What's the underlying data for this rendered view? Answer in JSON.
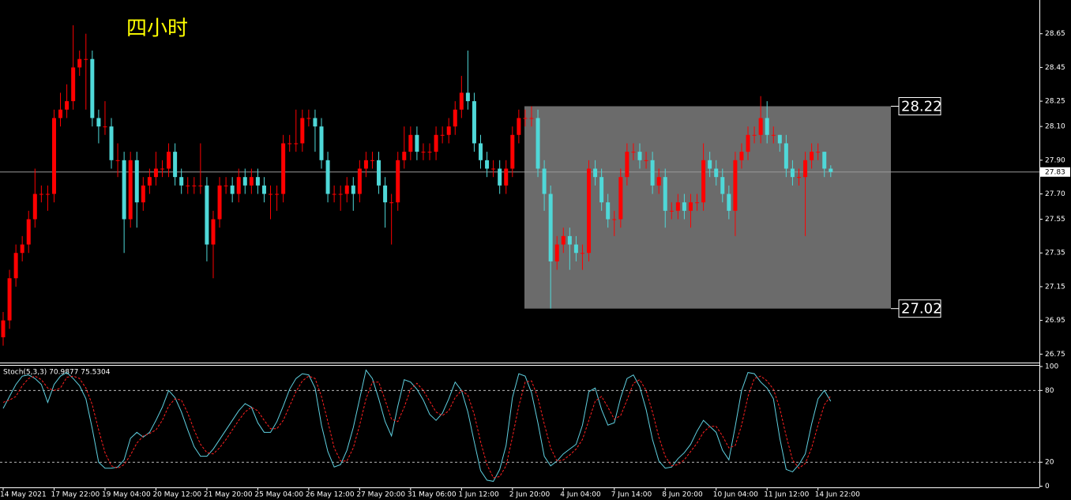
{
  "chart_data": {
    "type": "candlestick",
    "title": "四小时",
    "up_color": "#ff0000",
    "down_color": "#4fd8d8",
    "categories": [
      "14 May 2021",
      null,
      null,
      null,
      null,
      null,
      null,
      null,
      "17 May 22:00",
      null,
      null,
      null,
      null,
      null,
      null,
      null,
      "19 May 04:00",
      null,
      null,
      null,
      null,
      null,
      null,
      null,
      "20 May 12:00",
      null,
      null,
      null,
      null,
      null,
      null,
      null,
      "21 May 20:00",
      null,
      null,
      null,
      null,
      null,
      null,
      null,
      "25 May 04:00",
      null,
      null,
      null,
      null,
      null,
      null,
      null,
      "26 May 12:00",
      null,
      null,
      null,
      null,
      null,
      null,
      null,
      "27 May 20:00",
      null,
      null,
      null,
      null,
      null,
      null,
      null,
      "31 May 06:00",
      null,
      null,
      null,
      null,
      null,
      null,
      null,
      "1 Jun 12:00",
      null,
      null,
      null,
      null,
      null,
      null,
      null,
      "2 Jun 20:00",
      null,
      null,
      null,
      null,
      null,
      null,
      null,
      "4 Jun 04:00",
      null,
      null,
      null,
      null,
      null,
      null,
      null,
      "7 Jun 14:00",
      null,
      null,
      null,
      null,
      null,
      null,
      null,
      "8 Jun 20:00",
      null,
      null,
      null,
      null,
      null,
      null,
      null,
      "10 Jun 04:00",
      null,
      null,
      null,
      null,
      null,
      null,
      null,
      "11 Jun 12:00",
      null,
      null,
      null,
      null,
      null,
      null,
      null,
      "14 Jun 22:00",
      null,
      null
    ],
    "open": [
      26.85,
      26.95,
      27.2,
      27.35,
      27.4,
      27.55,
      27.7,
      27.7,
      27.7,
      28.15,
      28.2,
      28.25,
      28.45,
      28.5,
      28.5,
      28.15,
      28.1,
      28.1,
      27.9,
      27.9,
      27.55,
      27.9,
      27.65,
      27.75,
      27.8,
      27.85,
      27.85,
      27.95,
      27.8,
      27.75,
      27.75,
      27.75,
      27.75,
      27.4,
      27.55,
      27.75,
      27.75,
      27.7,
      27.8,
      27.75,
      27.8,
      27.75,
      27.7,
      27.7,
      27.7,
      28,
      28,
      28,
      28.15,
      28.15,
      28.1,
      27.9,
      27.7,
      27.7,
      27.7,
      27.75,
      27.7,
      27.85,
      27.9,
      27.9,
      27.75,
      27.65,
      27.65,
      27.9,
      27.95,
      28.05,
      27.95,
      27.95,
      27.95,
      28.05,
      28.05,
      28.1,
      28.2,
      28.3,
      28.25,
      28,
      27.9,
      27.85,
      27.85,
      27.75,
      27.85,
      28.05,
      28.15,
      28.15,
      28.15,
      27.85,
      27.7,
      27.3,
      27.4,
      27.45,
      27.4,
      27.35,
      27.35,
      27.85,
      27.8,
      27.65,
      27.55,
      27.55,
      27.8,
      27.95,
      27.95,
      27.9,
      27.9,
      27.75,
      27.8,
      27.6,
      27.6,
      27.65,
      27.6,
      27.65,
      27.65,
      27.9,
      27.85,
      27.8,
      27.7,
      27.6,
      27.9,
      27.95,
      28.05,
      28.05,
      28.15,
      28.05,
      28.05,
      28,
      27.85,
      27.8,
      27.8,
      27.9,
      27.95,
      27.95,
      27.85
    ],
    "high": [
      27,
      27.25,
      27.4,
      27.45,
      27.6,
      27.85,
      27.75,
      27.75,
      28.2,
      28.3,
      28.35,
      28.7,
      28.55,
      28.65,
      28.55,
      28.2,
      28.25,
      28.15,
      28,
      27.95,
      27.95,
      27.95,
      27.8,
      27.85,
      27.95,
      27.9,
      28,
      28,
      27.85,
      27.8,
      27.8,
      28,
      27.8,
      27.6,
      27.8,
      27.8,
      27.8,
      27.85,
      27.85,
      27.85,
      27.85,
      27.8,
      27.75,
      27.75,
      28.05,
      28.05,
      28.2,
      28.2,
      28.2,
      28.2,
      28.15,
      27.95,
      27.75,
      27.75,
      27.8,
      27.8,
      27.9,
      27.95,
      27.95,
      27.95,
      27.8,
      27.7,
      27.95,
      28.1,
      28.1,
      28.1,
      28,
      28,
      28.1,
      28.1,
      28.15,
      28.25,
      28.4,
      28.55,
      28.3,
      28.05,
      27.95,
      27.9,
      27.9,
      27.9,
      28.1,
      28.2,
      28.2,
      28.22,
      28.2,
      27.9,
      27.75,
      27.45,
      27.5,
      27.5,
      27.45,
      27.4,
      27.9,
      27.9,
      27.85,
      27.7,
      27.6,
      27.85,
      28,
      28,
      28,
      27.95,
      27.95,
      27.85,
      27.85,
      27.65,
      27.7,
      27.7,
      27.7,
      27.7,
      28,
      27.95,
      27.9,
      27.85,
      27.75,
      27.95,
      28,
      28.1,
      28.1,
      28.28,
      28.25,
      28.1,
      28.05,
      28.05,
      27.9,
      27.85,
      27.95,
      28,
      28,
      27.95,
      27.87
    ],
    "low": [
      26.8,
      26.9,
      27.15,
      27.3,
      27.35,
      27.5,
      27.65,
      27.6,
      27.65,
      28.1,
      28.15,
      28.2,
      28.4,
      28.2,
      28.1,
      28,
      28.05,
      27.85,
      27.8,
      27.35,
      27.5,
      27.5,
      27.6,
      27.7,
      27.75,
      27.8,
      27.8,
      27.75,
      27.7,
      27.7,
      27.7,
      27.7,
      27.3,
      27.2,
      27.5,
      27.7,
      27.65,
      27.65,
      27.7,
      27.7,
      27.7,
      27.65,
      27.55,
      27.6,
      27.65,
      27.95,
      27.95,
      27.95,
      28.1,
      27.95,
      27.85,
      27.65,
      27.65,
      27.6,
      27.65,
      27.6,
      27.65,
      27.8,
      27.85,
      27.7,
      27.5,
      27.4,
      27.6,
      27.85,
      27.9,
      27.9,
      27.9,
      27.9,
      27.9,
      28,
      28,
      28.05,
      28.15,
      28.2,
      27.95,
      27.85,
      27.8,
      27.8,
      27.7,
      27.7,
      27.8,
      28,
      28.1,
      28.1,
      27.8,
      27.6,
      27.02,
      27.25,
      27.35,
      27.25,
      27.3,
      27.25,
      27.3,
      27.75,
      27.6,
      27.5,
      27.45,
      27.5,
      27.75,
      27.9,
      27.85,
      27.85,
      27.7,
      27.7,
      27.5,
      27.55,
      27.55,
      27.55,
      27.5,
      27.6,
      27.6,
      27.8,
      27.75,
      27.65,
      27.55,
      27.45,
      27.85,
      27.9,
      28,
      28,
      28,
      28,
      27.95,
      27.8,
      27.75,
      27.75,
      27.45,
      27.85,
      27.9,
      27.8,
      27.8
    ],
    "close": [
      26.95,
      27.2,
      27.35,
      27.4,
      27.55,
      27.7,
      27.7,
      27.7,
      28.15,
      28.2,
      28.25,
      28.45,
      28.5,
      28.5,
      28.15,
      28.1,
      28.1,
      27.9,
      27.9,
      27.55,
      27.9,
      27.65,
      27.75,
      27.8,
      27.85,
      27.85,
      27.95,
      27.8,
      27.75,
      27.75,
      27.75,
      27.75,
      27.4,
      27.55,
      27.75,
      27.75,
      27.7,
      27.8,
      27.75,
      27.8,
      27.75,
      27.7,
      27.7,
      27.7,
      28,
      28,
      28,
      28.15,
      28.15,
      28.1,
      27.9,
      27.7,
      27.7,
      27.7,
      27.75,
      27.7,
      27.85,
      27.9,
      27.9,
      27.75,
      27.65,
      27.65,
      27.9,
      27.95,
      28.05,
      27.95,
      27.95,
      27.95,
      28.05,
      28.05,
      28.1,
      28.2,
      28.3,
      28.25,
      28,
      27.9,
      27.85,
      27.85,
      27.75,
      27.85,
      28.05,
      28.15,
      28.15,
      28.15,
      27.85,
      27.7,
      27.3,
      27.4,
      27.45,
      27.4,
      27.35,
      27.35,
      27.85,
      27.8,
      27.65,
      27.55,
      27.55,
      27.8,
      27.95,
      27.95,
      27.9,
      27.9,
      27.75,
      27.8,
      27.6,
      27.6,
      27.65,
      27.6,
      27.65,
      27.65,
      27.9,
      27.85,
      27.8,
      27.7,
      27.6,
      27.9,
      27.95,
      28.05,
      28.05,
      28.15,
      28.05,
      28.05,
      28,
      27.85,
      27.8,
      27.8,
      27.9,
      27.95,
      27.95,
      27.85,
      27.83
    ],
    "ylim": [
      26.7,
      28.85
    ],
    "yticks": [
      28.65,
      28.45,
      28.25,
      {
        "value": 28.1,
        "label": "28.10"
      },
      {
        "value": 27.9,
        "label": "27.90"
      },
      {
        "value": 27.7,
        "label": "27.70"
      },
      27.55,
      27.35,
      27.15,
      26.95,
      26.75
    ],
    "current_price": 27.83,
    "box": {
      "top": 28.22,
      "bottom": 27.02
    },
    "indicator": {
      "type": "line",
      "label": "Stoch(5,3,3) 70.9877 75.5304",
      "ylim": [
        -1,
        102
      ],
      "yticks": [
        100,
        80,
        20,
        0
      ],
      "levels": [
        80,
        20
      ],
      "series": [
        {
          "name": "Main",
          "color": "#5fd0e0",
          "dashed": false,
          "values": [
            65,
            75,
            85,
            92,
            93,
            90,
            85,
            70,
            85,
            92,
            95,
            90,
            84,
            73,
            48,
            20,
            15,
            15,
            16,
            22,
            40,
            45,
            41,
            45,
            55,
            66,
            80,
            74,
            62,
            47,
            33,
            25,
            25,
            31,
            39,
            47,
            55,
            63,
            69,
            66,
            53,
            45,
            45,
            54,
            67,
            81,
            90,
            94,
            93,
            82,
            51,
            29,
            16,
            18,
            30,
            49,
            73,
            97,
            90,
            73,
            54,
            42,
            67,
            89,
            87,
            81,
            72,
            60,
            55,
            61,
            73,
            87,
            80,
            62,
            37,
            13,
            5,
            4,
            14,
            34,
            74,
            94,
            92,
            78,
            53,
            25,
            17,
            21,
            27,
            31,
            35,
            51,
            79,
            82,
            64,
            51,
            53,
            74,
            90,
            93,
            83,
            64,
            39,
            21,
            15,
            16,
            23,
            28,
            35,
            46,
            55,
            50,
            45,
            30,
            22,
            50,
            80,
            95,
            94,
            87,
            82,
            73,
            40,
            14,
            12,
            18,
            27,
            52,
            73,
            80,
            70.9877
          ]
        },
        {
          "name": "Signal",
          "color": "#ff2020",
          "dashed": true,
          "values": [
            70,
            72,
            75,
            84,
            90,
            92,
            89,
            82,
            80,
            82,
            91,
            92,
            90,
            82,
            68,
            47,
            28,
            17,
            15,
            18,
            26,
            36,
            42,
            44,
            47,
            55,
            67,
            73,
            72,
            61,
            47,
            35,
            28,
            27,
            32,
            39,
            47,
            55,
            62,
            66,
            63,
            55,
            48,
            48,
            55,
            67,
            79,
            88,
            92,
            90,
            75,
            54,
            32,
            21,
            21,
            32,
            51,
            73,
            87,
            87,
            72,
            56,
            54,
            66,
            81,
            86,
            80,
            71,
            62,
            59,
            63,
            74,
            80,
            76,
            60,
            37,
            18,
            7,
            8,
            17,
            41,
            67,
            87,
            88,
            74,
            52,
            32,
            21,
            22,
            26,
            31,
            39,
            55,
            71,
            75,
            66,
            56,
            59,
            72,
            86,
            89,
            80,
            62,
            41,
            25,
            17,
            18,
            22,
            29,
            36,
            45,
            50,
            50,
            42,
            32,
            34,
            51,
            75,
            90,
            92,
            88,
            81,
            65,
            42,
            22,
            15,
            19,
            32,
            51,
            68,
            75.5304
          ]
        }
      ]
    }
  }
}
